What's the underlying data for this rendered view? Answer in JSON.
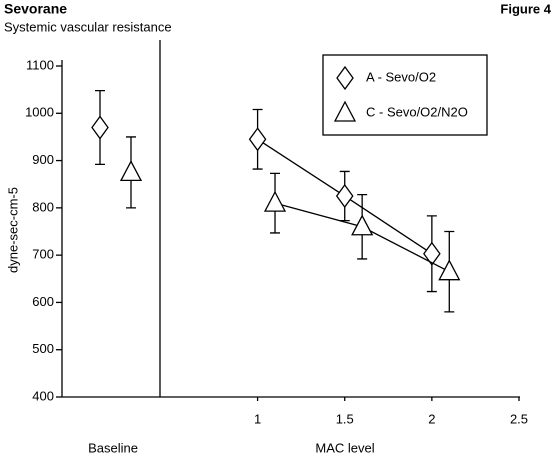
{
  "chart_data": {
    "type": "errorbar",
    "title": "Sevorane",
    "subtitle": "Systemic vascular resistance",
    "figure_label": "Figure 4",
    "y_label": "dyne-sec-cm-5",
    "x_label": "MAC level",
    "baseline_label": "Baseline",
    "ylim": [
      400,
      1100
    ],
    "yticks": [
      400,
      500,
      600,
      700,
      800,
      900,
      1000,
      1100
    ],
    "xlim": [
      0.44,
      2.5
    ],
    "xticks": [
      1,
      1.5,
      2,
      2.5
    ],
    "series": [
      {
        "name": "A - Sevo/O2",
        "marker": "diamond",
        "color": "#000000",
        "baseline": 970,
        "baseline_err": 78,
        "x": [
          1,
          1.5,
          2
        ],
        "values": [
          945,
          825,
          703
        ],
        "errors": [
          63,
          52,
          80
        ]
      },
      {
        "name": "C - Sevo/O2/N2O",
        "marker": "triangle",
        "color": "#000000",
        "baseline": 875,
        "baseline_err": 75,
        "x": [
          1.1,
          1.6,
          2.1
        ],
        "values": [
          810,
          760,
          665
        ],
        "errors": [
          63,
          68,
          85
        ]
      }
    ]
  }
}
